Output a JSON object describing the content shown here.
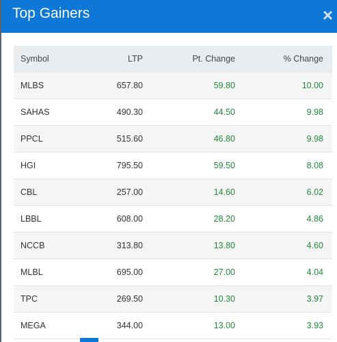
{
  "header": {
    "title": "Top Gainers",
    "close": "×"
  },
  "table": {
    "columns": [
      "Symbol",
      "LTP",
      "Pt. Change",
      "% Change"
    ],
    "rows": [
      [
        "MLBS",
        "657.80",
        "59.80",
        "10.00"
      ],
      [
        "SAHAS",
        "490.30",
        "44.50",
        "9.98"
      ],
      [
        "PPCL",
        "515.60",
        "46.80",
        "9.98"
      ],
      [
        "HGI",
        "795.50",
        "59.50",
        "8.08"
      ],
      [
        "CBL",
        "257.00",
        "14.60",
        "6.02"
      ],
      [
        "LBBL",
        "608.00",
        "28.20",
        "4.86"
      ],
      [
        "NCCB",
        "313.80",
        "13.80",
        "4.60"
      ],
      [
        "MLBL",
        "695.00",
        "27.00",
        "4.04"
      ],
      [
        "TPC",
        "269.50",
        "10.30",
        "3.97"
      ],
      [
        "MEGA",
        "344.00",
        "13.00",
        "3.93"
      ]
    ]
  }
}
